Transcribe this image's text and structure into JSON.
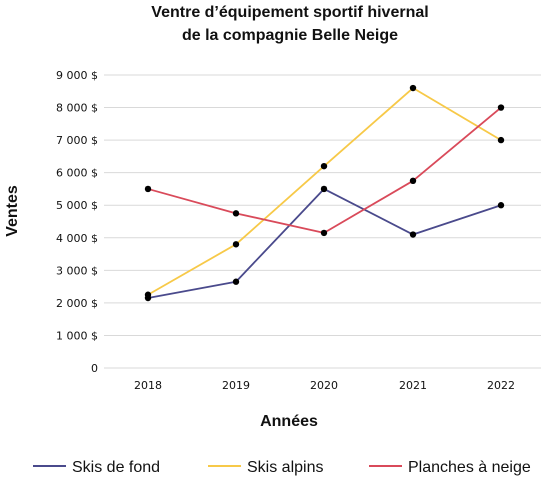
{
  "chart_data": {
    "type": "line",
    "title_lines": [
      "Ventre d’équipement sportif hivernal",
      "de la compagnie Belle Neige"
    ],
    "xlabel": "Années",
    "ylabel": "Ventes",
    "categories": [
      "2018",
      "2019",
      "2020",
      "2021",
      "2022"
    ],
    "y_ticks": [
      0,
      1000,
      2000,
      3000,
      4000,
      5000,
      6000,
      7000,
      8000,
      9000
    ],
    "y_tick_labels": [
      "0",
      "1 000 $",
      "2 000 $",
      "3 000 $",
      "4 000 $",
      "5 000 $",
      "6 000 $",
      "7 000 $",
      "8 000 $",
      "9 000 $"
    ],
    "ylim": [
      0,
      9000
    ],
    "grid": true,
    "legend_position": "bottom",
    "marker_color": "#000000",
    "series": [
      {
        "name": "Skis de fond",
        "color": "#4a4a8c",
        "values": [
          2150,
          2650,
          5500,
          4100,
          5000
        ]
      },
      {
        "name": "Skis alpins",
        "color": "#f7c948",
        "values": [
          2250,
          3800,
          6200,
          8600,
          7000
        ]
      },
      {
        "name": "Planches à neige",
        "color": "#d94a5a",
        "values": [
          5500,
          4750,
          4150,
          5750,
          8000
        ]
      }
    ]
  }
}
